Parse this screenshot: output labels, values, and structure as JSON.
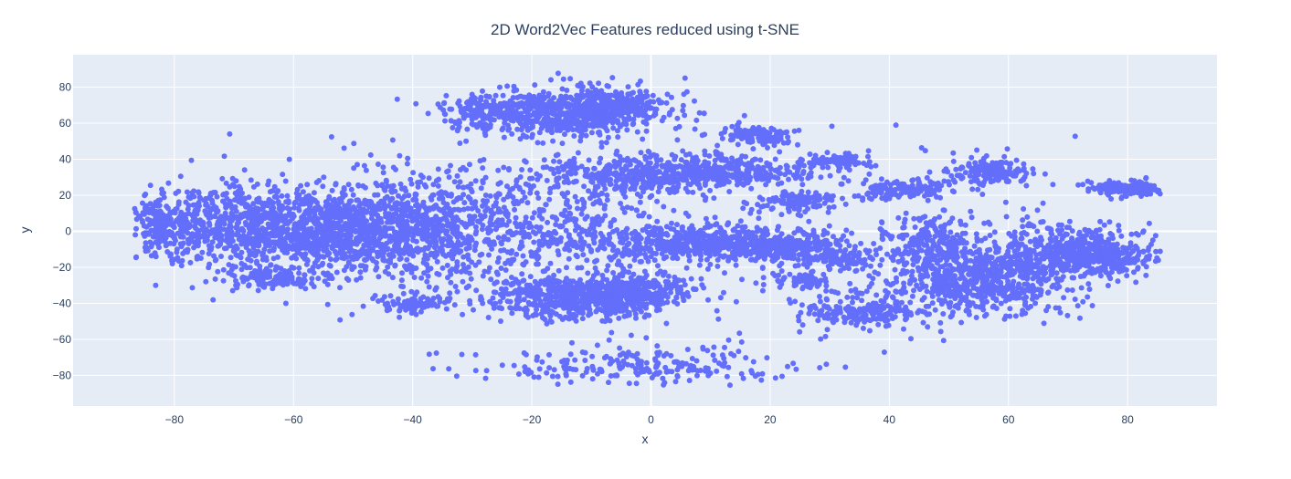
{
  "chart_data": {
    "type": "scatter",
    "title": "2D Word2Vec Features reduced using t-SNE",
    "xlabel": "x",
    "ylabel": "y",
    "xlim": [
      -97,
      95
    ],
    "ylim": [
      -97,
      98
    ],
    "xticks": [
      -80,
      -60,
      -40,
      -20,
      0,
      20,
      40,
      60,
      80
    ],
    "yticks": [
      -80,
      -60,
      -40,
      -20,
      0,
      20,
      40,
      60,
      80
    ],
    "tick_labels": {
      "x": [
        "−80",
        "−60",
        "−40",
        "−20",
        "0",
        "20",
        "40",
        "60",
        "80"
      ],
      "y": [
        "−80",
        "−60",
        "−40",
        "−20",
        "0",
        "20",
        "40",
        "60",
        "80"
      ]
    },
    "grid": true,
    "legend": "none",
    "colors": {
      "marker": "#636efa",
      "plot_bg": "#e5ecf6",
      "grid": "#ffffff",
      "text": "#2a3f5f"
    },
    "series": [
      {
        "clusters": [
          {
            "cx": -68,
            "cy": 2,
            "sx": 10,
            "sy": 12,
            "n": 900
          },
          {
            "cx": -50,
            "cy": 0,
            "sx": 8,
            "sy": 12,
            "n": 700
          },
          {
            "cx": -82,
            "cy": 2,
            "sx": 3,
            "sy": 8,
            "n": 120
          },
          {
            "cx": -36,
            "cy": 5,
            "sx": 7,
            "sy": 14,
            "n": 450
          },
          {
            "cx": -63,
            "cy": -27,
            "sx": 4,
            "sy": 2.5,
            "n": 110
          },
          {
            "cx": -40,
            "cy": -40,
            "sx": 3.5,
            "sy": 2.5,
            "n": 90
          },
          {
            "cx": -18,
            "cy": 65,
            "sx": 8,
            "sy": 6,
            "n": 500
          },
          {
            "cx": -8,
            "cy": 68,
            "sx": 6,
            "sy": 6,
            "n": 350
          },
          {
            "cx": -28,
            "cy": 68,
            "sx": 3,
            "sy": 4,
            "n": 60
          },
          {
            "cx": 0,
            "cy": 32,
            "sx": 9,
            "sy": 5,
            "n": 420
          },
          {
            "cx": 15,
            "cy": 34,
            "sx": 7,
            "sy": 4,
            "n": 200
          },
          {
            "cx": 18,
            "cy": 53,
            "sx": 3,
            "sy": 3,
            "n": 120
          },
          {
            "cx": 25,
            "cy": 17,
            "sx": 3,
            "sy": 2.5,
            "n": 110
          },
          {
            "cx": 31,
            "cy": 39,
            "sx": 3.5,
            "sy": 2,
            "n": 90
          },
          {
            "cx": 42,
            "cy": 23,
            "sx": 4,
            "sy": 3,
            "n": 130
          },
          {
            "cx": 57,
            "cy": 33,
            "sx": 3.5,
            "sy": 3.5,
            "n": 170
          },
          {
            "cx": 80,
            "cy": 24,
            "sx": 3.5,
            "sy": 2,
            "n": 150
          },
          {
            "cx": -12,
            "cy": -37,
            "sx": 8,
            "sy": 6,
            "n": 600
          },
          {
            "cx": -2,
            "cy": -32,
            "sx": 4,
            "sy": 5,
            "n": 160
          },
          {
            "cx": 8,
            "cy": -6,
            "sx": 10,
            "sy": 5,
            "n": 500
          },
          {
            "cx": 22,
            "cy": -10,
            "sx": 6,
            "sy": 4,
            "n": 230
          },
          {
            "cx": 25,
            "cy": -27,
            "sx": 2.5,
            "sy": 2,
            "n": 60
          },
          {
            "cx": 35,
            "cy": -45,
            "sx": 5,
            "sy": 4,
            "n": 180
          },
          {
            "cx": 55,
            "cy": -28,
            "sx": 8,
            "sy": 9,
            "n": 650
          },
          {
            "cx": 68,
            "cy": -10,
            "sx": 6,
            "sy": 7,
            "n": 350
          },
          {
            "cx": 76,
            "cy": -14,
            "sx": 4,
            "sy": 5,
            "n": 250
          },
          {
            "cx": 47,
            "cy": -5,
            "sx": 4,
            "sy": 7,
            "n": 200
          },
          {
            "cx": 32,
            "cy": -16,
            "sx": 3,
            "sy": 2.5,
            "n": 70
          },
          {
            "cx": -18,
            "cy": 0,
            "sx": 9,
            "sy": 15,
            "n": 300
          },
          {
            "cx": 0,
            "cy": 5,
            "sx": 25,
            "sy": 25,
            "n": 250
          },
          {
            "cx": -2,
            "cy": -75,
            "sx": 14,
            "sy": 5,
            "n": 220
          },
          {
            "cx": 0,
            "cy": 0,
            "sx": 45,
            "sy": 30,
            "n": 200
          }
        ]
      }
    ]
  }
}
